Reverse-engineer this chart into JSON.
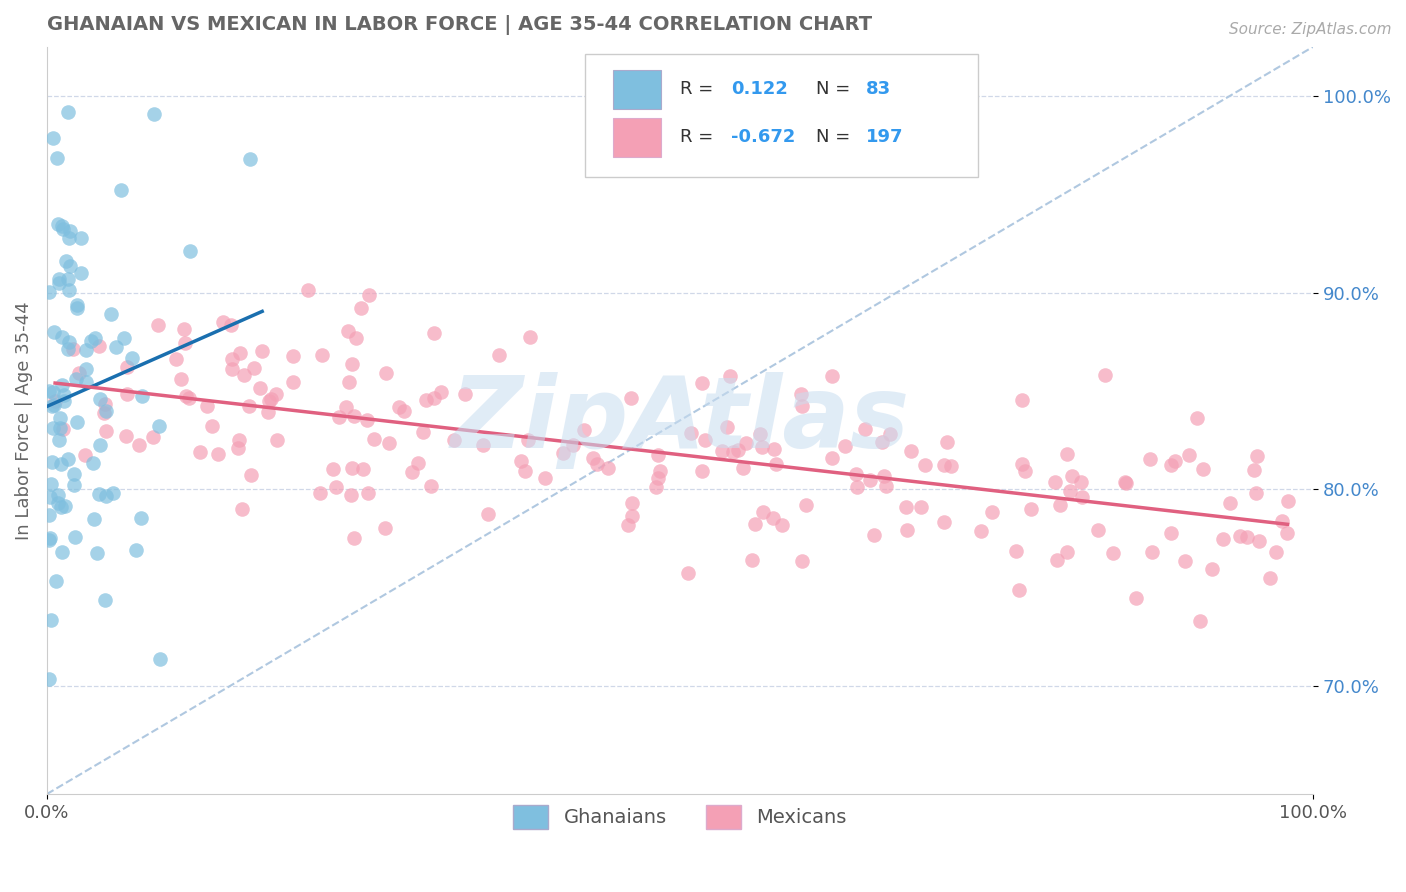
{
  "title": "GHANAIAN VS MEXICAN IN LABOR FORCE | AGE 35-44 CORRELATION CHART",
  "source_text": "Source: ZipAtlas.com",
  "ylabel": "In Labor Force | Age 35-44",
  "xlim": [
    0.0,
    1.0
  ],
  "ylim": [
    0.645,
    1.025
  ],
  "yticks": [
    0.7,
    0.8,
    0.9,
    1.0
  ],
  "ytick_labels": [
    "70.0%",
    "80.0%",
    "90.0%",
    "100.0%"
  ],
  "ghanaian_color": "#7fbfdf",
  "mexican_color": "#f4a0b5",
  "ghanaian_line_color": "#1a6faf",
  "mexican_line_color": "#e06080",
  "diagonal_color": "#b0c8e0",
  "background_color": "#ffffff",
  "grid_color": "#d0d8e8",
  "title_color": "#666666",
  "ytick_color": "#4488cc",
  "watermark": "ZipAtlas",
  "watermark_color": "#c8ddf0"
}
